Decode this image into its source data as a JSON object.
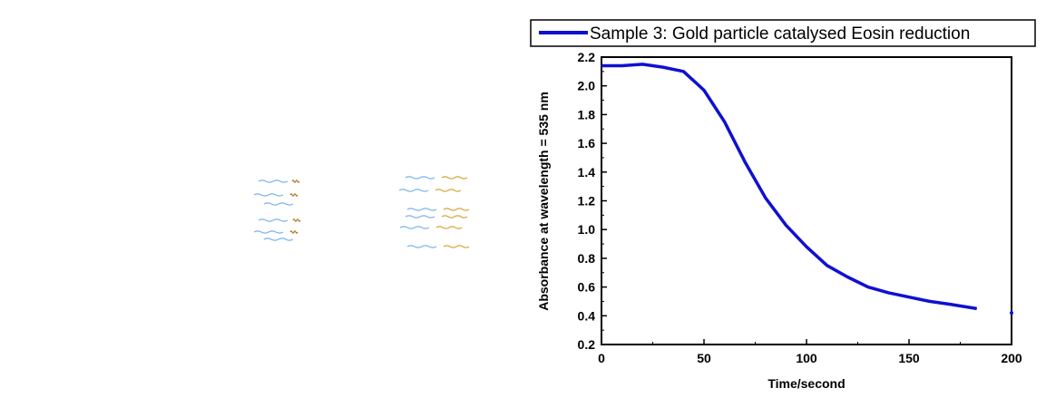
{
  "chart_data": {
    "type": "line",
    "title": "",
    "xlabel": "Time/second",
    "ylabel": "Absorbance at wavelength = 535 nm",
    "xlim": [
      0,
      200
    ],
    "ylim": [
      0.2,
      2.2
    ],
    "x_ticks": [
      "0",
      "50",
      "100",
      "150",
      "200"
    ],
    "y_ticks": [
      "0.2",
      "0.4",
      "0.6",
      "0.8",
      "1.0",
      "1.2",
      "1.4",
      "1.6",
      "1.8",
      "2.0",
      "2.2"
    ],
    "grid": false,
    "legend_position": "top",
    "colors": {
      "series": "#1010d0",
      "axes": "#000000"
    },
    "series": [
      {
        "name": "Sample 3: Gold particle catalysed Eosin reduction",
        "x": [
          0,
          10,
          20,
          30,
          40,
          50,
          60,
          70,
          80,
          90,
          100,
          110,
          120,
          130,
          140,
          150,
          160,
          170,
          183
        ],
        "y": [
          2.14,
          2.14,
          2.15,
          2.13,
          2.1,
          1.97,
          1.75,
          1.47,
          1.22,
          1.03,
          0.88,
          0.75,
          0.67,
          0.6,
          0.56,
          0.53,
          0.5,
          0.48,
          0.45
        ]
      },
      {
        "name": "",
        "x": [
          200
        ],
        "y": [
          0.42
        ]
      }
    ]
  },
  "decoration": {
    "left_icon": "wavy-lines-icon",
    "right_icon": "wavy-lines-icon",
    "colors": {
      "blue": "#7ab3e8",
      "gold": "#d9a43a",
      "brown": "#b07020"
    }
  }
}
